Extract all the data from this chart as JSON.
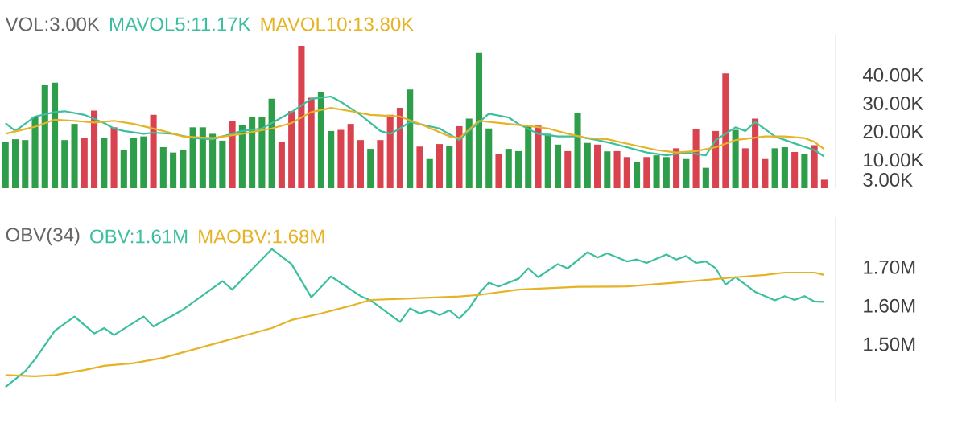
{
  "chart_data": [
    {
      "type": "bar",
      "title": "VOL:3.00K",
      "legend": "top left",
      "tick_labels": "y",
      "categories": [
        null,
        null,
        null,
        null,
        null,
        null,
        null,
        null,
        null,
        null,
        null,
        null,
        null,
        null,
        null,
        null,
        null,
        null,
        null,
        null,
        null,
        null,
        null,
        null,
        null,
        null,
        null,
        null,
        null,
        null,
        null,
        null,
        null,
        null,
        null,
        null,
        null,
        null,
        null,
        null,
        null,
        null,
        null,
        null,
        null,
        null,
        null,
        null,
        null,
        null,
        null,
        null,
        null,
        null,
        null,
        null,
        null,
        null,
        null,
        null,
        null,
        null,
        null,
        null,
        null,
        null,
        null,
        null,
        null,
        null,
        null,
        null,
        null,
        null,
        null,
        null,
        null,
        null,
        null,
        null,
        null,
        null,
        null,
        null
      ],
      "ylim": [
        0,
        54000
      ],
      "yticks": [
        {
          "value": 3000,
          "label": "3.00K"
        },
        {
          "value": 10000,
          "label": "10.00K"
        },
        {
          "value": 20000,
          "label": "20.00K"
        },
        {
          "value": 30000,
          "label": "30.00K"
        },
        {
          "value": 40000,
          "label": "40.00K"
        }
      ],
      "series": [
        {
          "values": [
            16400,
            17300,
            17000,
            25300,
            36400,
            37300,
            17000,
            22700,
            17900,
            27400,
            17700,
            21500,
            13500,
            17700,
            18300,
            25900,
            14500,
            12600,
            13500,
            21500,
            21500,
            19200,
            16800,
            23800,
            22300,
            25300,
            25300,
            31600,
            16200,
            27200,
            50300,
            32000,
            33900,
            20200,
            20600,
            22700,
            17000,
            13900,
            17000,
            25900,
            28400,
            34900,
            14700,
            10300,
            15600,
            15000,
            21900,
            24600,
            47800,
            21100,
            12000,
            13900,
            13100,
            22100,
            22100,
            19200,
            15400,
            13100,
            26500,
            16000,
            15400,
            13000,
            13100,
            11000,
            9300,
            11000,
            11600,
            11000,
            14100,
            10300,
            20800,
            7200,
            20200,
            40600,
            20600,
            14100,
            24600,
            10300,
            14100,
            14500,
            12800,
            12200,
            15200,
            3000
          ],
          "colors": [
            "#2e9e4a",
            "#2e9e4a",
            "#2e9e4a",
            "#2e9e4a",
            "#2e9e4a",
            "#2e9e4a",
            "#2e9e4a",
            "#2e9e4a",
            "#d9424f",
            "#d9424f",
            "#2e9e4a",
            "#d9424f",
            "#2e9e4a",
            "#2e9e4a",
            "#2e9e4a",
            "#d9424f",
            "#2e9e4a",
            "#2e9e4a",
            "#2e9e4a",
            "#2e9e4a",
            "#2e9e4a",
            "#2e9e4a",
            "#2e9e4a",
            "#d9424f",
            "#2e9e4a",
            "#2e9e4a",
            "#2e9e4a",
            "#2e9e4a",
            "#d9424f",
            "#d9424f",
            "#d9424f",
            "#d9424f",
            "#2e9e4a",
            "#2e9e4a",
            "#d9424f",
            "#d9424f",
            "#d9424f",
            "#2e9e4a",
            "#d9424f",
            "#d9424f",
            "#d9424f",
            "#2e9e4a",
            "#d9424f",
            "#2e9e4a",
            "#d9424f",
            "#2e9e4a",
            "#d9424f",
            "#2e9e4a",
            "#2e9e4a",
            "#2e9e4a",
            "#d9424f",
            "#2e9e4a",
            "#2e9e4a",
            "#2e9e4a",
            "#d9424f",
            "#2e9e4a",
            "#2e9e4a",
            "#d9424f",
            "#2e9e4a",
            "#2e9e4a",
            "#d9424f",
            "#2e9e4a",
            "#d9424f",
            "#d9424f",
            "#2e9e4a",
            "#d9424f",
            "#2e9e4a",
            "#2e9e4a",
            "#d9424f",
            "#2e9e4a",
            "#d9424f",
            "#2e9e4a",
            "#d9424f",
            "#d9424f",
            "#2e9e4a",
            "#d9424f",
            "#d9424f",
            "#d9424f",
            "#2e9e4a",
            "#2e9e4a",
            "#d9424f",
            "#2e9e4a",
            "#d9424f",
            "#d9424f"
          ]
        },
        {
          "type": "line",
          "name": "MAVOL5:11.17K",
          "color": "#3bbf9e",
          "values": [
            23000,
            20200,
            null,
            25300,
            null,
            26900,
            27200,
            null,
            25900,
            null,
            23000,
            21100,
            20200,
            null,
            19200,
            19600,
            null,
            19200,
            null,
            17700,
            null,
            17300,
            18300,
            null,
            20200,
            null,
            21100,
            23000,
            null,
            26900,
            null,
            31600,
            null,
            32400,
            30500,
            null,
            25900,
            null,
            20200,
            19200,
            21100,
            23400,
            null,
            null,
            21100,
            null,
            17000,
            20200,
            null,
            26300,
            null,
            25000,
            22700,
            null,
            19200,
            null,
            18300,
            null,
            18300,
            null,
            17000,
            null,
            15400,
            null,
            null,
            12600,
            null,
            11600,
            null,
            12600,
            null,
            11600,
            17000,
            null,
            21500,
            20200,
            23400,
            null,
            18300,
            null,
            15800,
            null,
            13500,
            11200
          ]
        },
        {
          "type": "line",
          "name": "MAVOL10:13.80K",
          "color": "#e5b325",
          "values": [
            19200,
            null,
            null,
            21700,
            null,
            24200,
            null,
            23800,
            null,
            23200,
            null,
            23800,
            null,
            22700,
            null,
            null,
            20200,
            null,
            18300,
            null,
            null,
            17700,
            null,
            null,
            19200,
            null,
            null,
            21100,
            null,
            23000,
            null,
            26900,
            null,
            28400,
            null,
            27200,
            null,
            25900,
            null,
            null,
            25300,
            null,
            22700,
            null,
            null,
            18300,
            17700,
            null,
            23800,
            null,
            null,
            22700,
            null,
            22000,
            null,
            21100,
            null,
            19200,
            null,
            17700,
            null,
            17300,
            null,
            null,
            15000,
            null,
            13500,
            null,
            12600,
            null,
            13100,
            null,
            14500,
            null,
            17000,
            null,
            null,
            18300,
            null,
            18300,
            null,
            17700,
            16400,
            13800
          ]
        }
      ]
    },
    {
      "type": "line",
      "title": "OBV(34)",
      "legend": "top left",
      "tick_labels": "y",
      "categories": [
        null,
        null,
        null,
        null,
        null,
        null,
        null,
        null,
        null,
        null,
        null,
        null,
        null,
        null,
        null,
        null,
        null,
        null,
        null,
        null,
        null,
        null,
        null,
        null,
        null,
        null,
        null,
        null,
        null,
        null,
        null,
        null,
        null,
        null,
        null,
        null,
        null,
        null,
        null,
        null,
        null,
        null,
        null,
        null,
        null,
        null,
        null,
        null,
        null,
        null,
        null,
        null,
        null,
        null,
        null,
        null,
        null,
        null,
        null,
        null,
        null,
        null,
        null,
        null,
        null,
        null,
        null,
        null,
        null,
        null,
        null,
        null,
        null,
        null,
        null,
        null,
        null,
        null,
        null,
        null,
        null,
        null,
        null,
        null
      ],
      "ylim": [
        1350000,
        1830000
      ],
      "yticks": [
        {
          "value": 1500000,
          "label": "1.50M"
        },
        {
          "value": 1600000,
          "label": "1.60M"
        },
        {
          "value": 1700000,
          "label": "1.70M"
        }
      ],
      "series": [
        {
          "name": "OBV:1.61M",
          "color": "#3bbf9e",
          "values": [
            1389000,
            null,
            1430000,
            1461000,
            null,
            1535000,
            null,
            1572000,
            null,
            1528000,
            1542000,
            1524000,
            null,
            null,
            1572000,
            1546000,
            null,
            null,
            1590000,
            null,
            null,
            null,
            1664000,
            1642000,
            null,
            null,
            null,
            1747000,
            null,
            1708000,
            null,
            1622000,
            null,
            1676000,
            null,
            null,
            1625000,
            1614000,
            null,
            null,
            1558000,
            1593000,
            1580000,
            1588000,
            1576000,
            1588000,
            1567000,
            1593000,
            1632000,
            1660000,
            1650000,
            null,
            1670000,
            1697000,
            1674000,
            null,
            1708000,
            1697000,
            null,
            1739000,
            1725000,
            1736000,
            null,
            1715000,
            1720000,
            1711000,
            null,
            1733000,
            1720000,
            1729000,
            1711000,
            1715000,
            1697000,
            1655000,
            1674000,
            null,
            1636000,
            null,
            1614000,
            1625000,
            1615000,
            1625000,
            1611000,
            1610000
          ]
        },
        {
          "name": "MAOBV:1.68M",
          "color": "#e5b325",
          "values": [
            1420000,
            null,
            null,
            1417000,
            null,
            1420000,
            null,
            null,
            1433000,
            null,
            1444000,
            null,
            null,
            1451000,
            null,
            null,
            1465000,
            null,
            1479000,
            null,
            null,
            1500000,
            null,
            null,
            1521000,
            null,
            null,
            1542000,
            null,
            1563000,
            null,
            null,
            1580000,
            null,
            null,
            1600000,
            null,
            1615000,
            null,
            null,
            1618000,
            null,
            null,
            1621000,
            null,
            null,
            1624000,
            null,
            1628000,
            null,
            null,
            null,
            1642000,
            null,
            null,
            null,
            null,
            null,
            1649000,
            null,
            null,
            null,
            null,
            1650000,
            null,
            null,
            null,
            null,
            1660000,
            null,
            null,
            1667000,
            null,
            null,
            1674000,
            null,
            null,
            1680000,
            null,
            1686000,
            null,
            null,
            1686000,
            1680000
          ]
        }
      ]
    }
  ]
}
